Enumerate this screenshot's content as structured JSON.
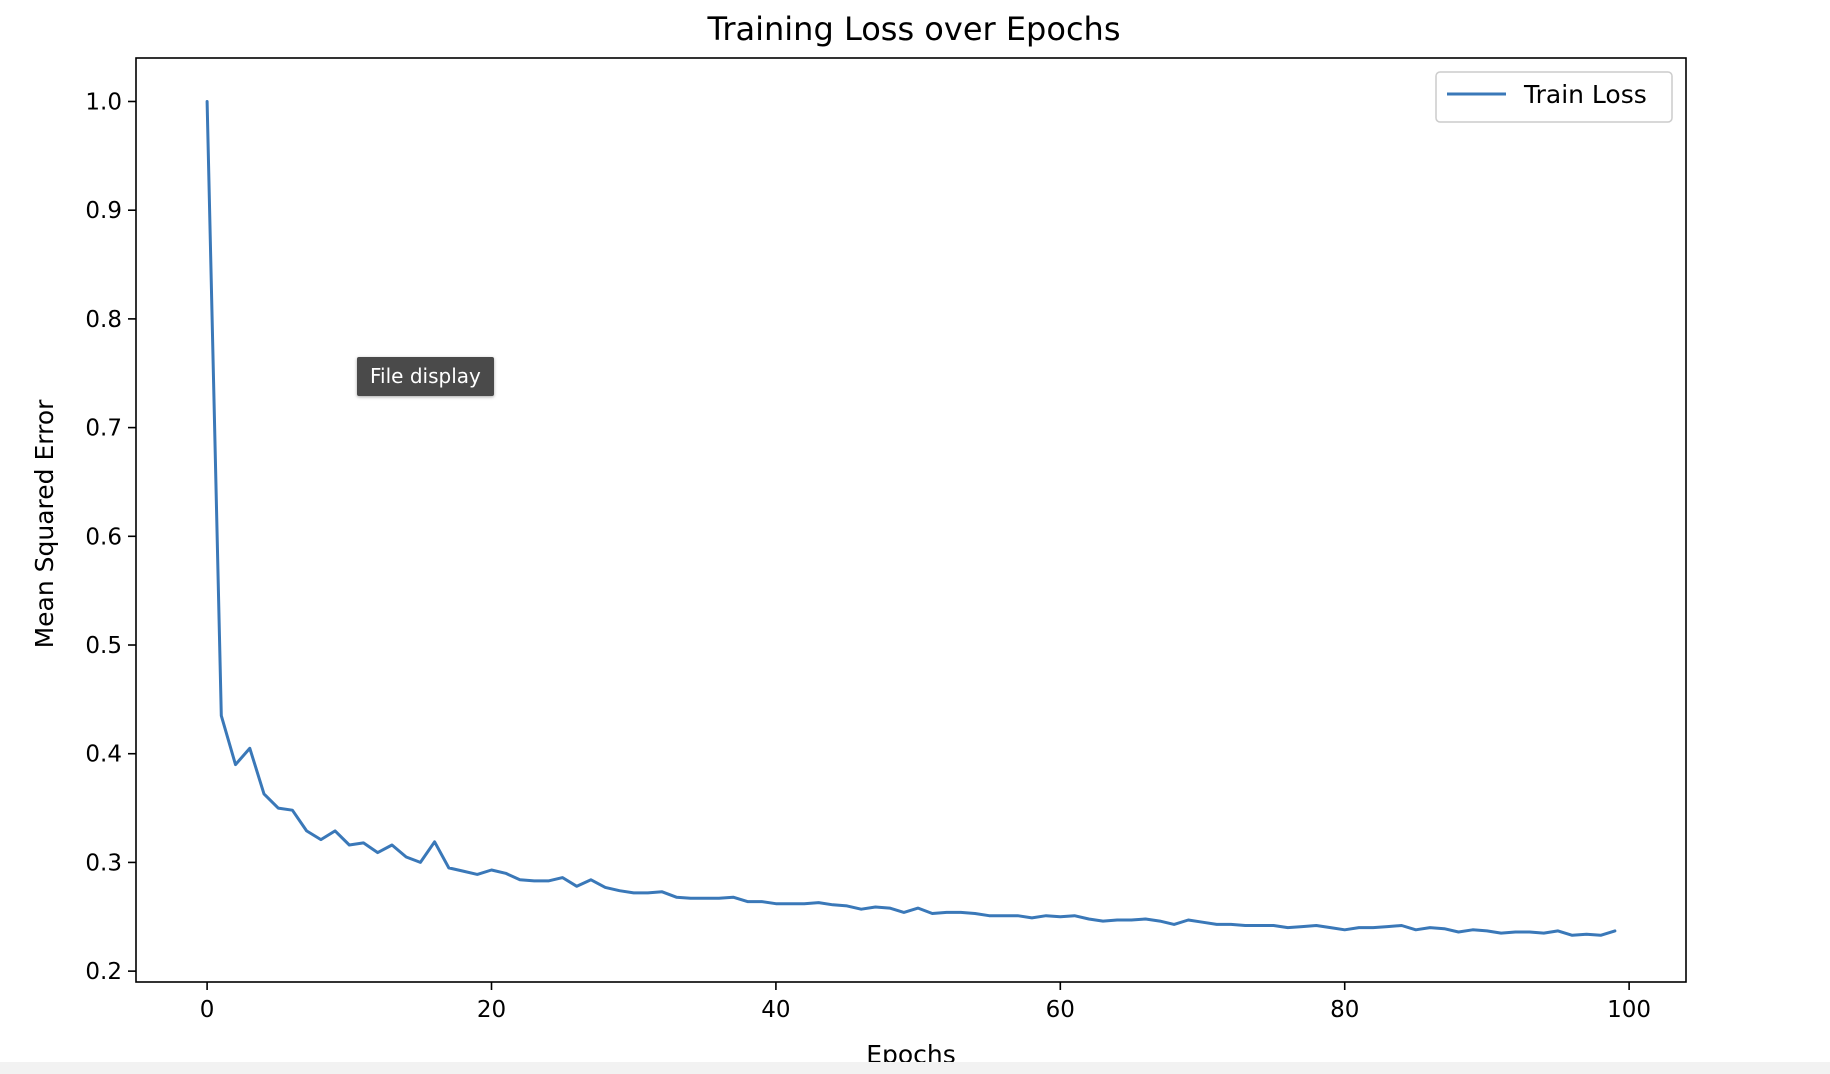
{
  "tooltip": {
    "text": "File display"
  },
  "chart_data": {
    "type": "line",
    "title": "Training Loss over Epochs",
    "xlabel": "Epochs",
    "ylabel": "Mean Squared Error",
    "xlim": [
      -5,
      104
    ],
    "ylim": [
      0.19,
      1.04
    ],
    "x_ticks": [
      0,
      20,
      40,
      60,
      80,
      100
    ],
    "y_ticks": [
      0.2,
      0.3,
      0.4,
      0.5,
      0.6,
      0.7,
      0.8,
      0.9,
      1.0
    ],
    "x_tick_labels": [
      "0",
      "20",
      "40",
      "60",
      "80",
      "100"
    ],
    "y_tick_labels": [
      "0.2",
      "0.3",
      "0.4",
      "0.5",
      "0.6",
      "0.7",
      "0.8",
      "0.9",
      "1.0"
    ],
    "grid": false,
    "legend": {
      "position": "top-right"
    },
    "series": [
      {
        "name": "Train Loss",
        "color": "#3a78b8",
        "x": [
          0,
          1,
          2,
          3,
          4,
          5,
          6,
          7,
          8,
          9,
          10,
          11,
          12,
          13,
          14,
          15,
          16,
          17,
          18,
          19,
          20,
          21,
          22,
          23,
          24,
          25,
          26,
          27,
          28,
          29,
          30,
          31,
          32,
          33,
          34,
          35,
          36,
          37,
          38,
          39,
          40,
          41,
          42,
          43,
          44,
          45,
          46,
          47,
          48,
          49,
          50,
          51,
          52,
          53,
          54,
          55,
          56,
          57,
          58,
          59,
          60,
          61,
          62,
          63,
          64,
          65,
          66,
          67,
          68,
          69,
          70,
          71,
          72,
          73,
          74,
          75,
          76,
          77,
          78,
          79,
          80,
          81,
          82,
          83,
          84,
          85,
          86,
          87,
          88,
          89,
          90,
          91,
          92,
          93,
          94,
          95,
          96,
          97,
          98,
          99
        ],
        "values": [
          1.0,
          0.435,
          0.39,
          0.405,
          0.363,
          0.35,
          0.348,
          0.329,
          0.321,
          0.329,
          0.316,
          0.318,
          0.309,
          0.316,
          0.305,
          0.3,
          0.319,
          0.295,
          0.292,
          0.289,
          0.293,
          0.29,
          0.284,
          0.283,
          0.283,
          0.286,
          0.278,
          0.284,
          0.277,
          0.274,
          0.272,
          0.272,
          0.273,
          0.268,
          0.267,
          0.267,
          0.267,
          0.268,
          0.264,
          0.264,
          0.262,
          0.262,
          0.262,
          0.263,
          0.261,
          0.26,
          0.257,
          0.259,
          0.258,
          0.254,
          0.258,
          0.253,
          0.254,
          0.254,
          0.253,
          0.251,
          0.251,
          0.251,
          0.249,
          0.251,
          0.25,
          0.251,
          0.248,
          0.246,
          0.247,
          0.247,
          0.248,
          0.246,
          0.243,
          0.247,
          0.245,
          0.243,
          0.243,
          0.242,
          0.242,
          0.242,
          0.24,
          0.241,
          0.242,
          0.24,
          0.238,
          0.24,
          0.24,
          0.241,
          0.242,
          0.238,
          0.24,
          0.239,
          0.236,
          0.238,
          0.237,
          0.235,
          0.236,
          0.236,
          0.235,
          0.237,
          0.233,
          0.234,
          0.233,
          0.237
        ]
      }
    ]
  }
}
